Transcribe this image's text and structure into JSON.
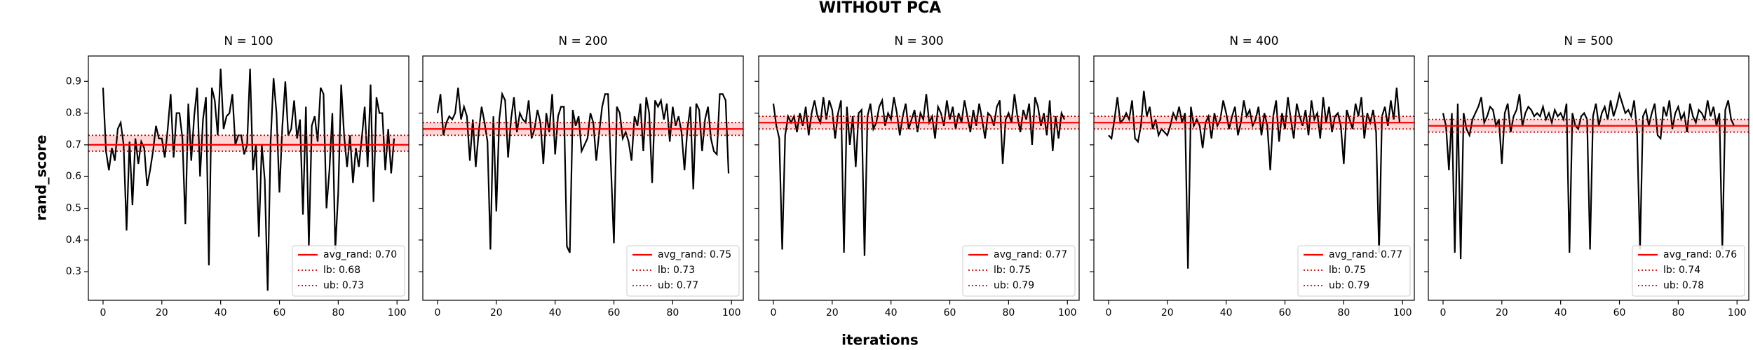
{
  "title": "WITHOUT PCA",
  "xlabel": "iterations",
  "ylabel": "rand_score",
  "chart_data": [
    {
      "type": "line",
      "title": "N = 100",
      "x": [
        0,
        1,
        2,
        3,
        4,
        5,
        6,
        7,
        8,
        9,
        10,
        11,
        12,
        13,
        14,
        15,
        16,
        17,
        18,
        19,
        20,
        21,
        22,
        23,
        24,
        25,
        26,
        27,
        28,
        29,
        30,
        31,
        32,
        33,
        34,
        35,
        36,
        37,
        38,
        39,
        40,
        41,
        42,
        43,
        44,
        45,
        46,
        47,
        48,
        49,
        50,
        51,
        52,
        53,
        54,
        55,
        56,
        57,
        58,
        59,
        60,
        61,
        62,
        63,
        64,
        65,
        66,
        67,
        68,
        69,
        70,
        71,
        72,
        73,
        74,
        75,
        76,
        77,
        78,
        79,
        80,
        81,
        82,
        83,
        84,
        85,
        86,
        87,
        88,
        89,
        90,
        91,
        92,
        93,
        94,
        95,
        96,
        97,
        98,
        99
      ],
      "series": [
        {
          "color": "#000000",
          "values": [
            0.88,
            0.68,
            0.62,
            0.69,
            0.65,
            0.75,
            0.77,
            0.7,
            0.43,
            0.71,
            0.51,
            0.72,
            0.64,
            0.71,
            0.69,
            0.57,
            0.62,
            0.68,
            0.76,
            0.72,
            0.72,
            0.66,
            0.75,
            0.86,
            0.66,
            0.8,
            0.8,
            0.72,
            0.45,
            0.83,
            0.65,
            0.79,
            0.88,
            0.6,
            0.78,
            0.85,
            0.32,
            0.88,
            0.84,
            0.73,
            0.94,
            0.75,
            0.79,
            0.8,
            0.86,
            0.7,
            0.73,
            0.73,
            0.67,
            0.7,
            0.94,
            0.62,
            0.7,
            0.41,
            0.7,
            0.59,
            0.24,
            0.71,
            0.91,
            0.8,
            0.55,
            0.76,
            0.9,
            0.73,
            0.75,
            0.84,
            0.72,
            0.78,
            0.48,
            0.82,
            0.38,
            0.76,
            0.79,
            0.71,
            0.88,
            0.86,
            0.5,
            0.62,
            0.8,
            0.37,
            0.55,
            0.89,
            0.73,
            0.63,
            0.73,
            0.58,
            0.69,
            0.63,
            0.72,
            0.82,
            0.63,
            0.89,
            0.52,
            0.85,
            0.8,
            0.8,
            0.62,
            0.75,
            0.61,
            0.72
          ]
        }
      ],
      "hlines": [
        {
          "name": "avg_rand: 0.70",
          "value": 0.7,
          "color": "#ff0000",
          "style": "solid"
        },
        {
          "name": "lb: 0.68",
          "value": 0.68,
          "color": "#cc0000",
          "style": "dotted"
        },
        {
          "name": "ub: 0.73",
          "value": 0.73,
          "color": "#cc0000",
          "style": "dotted"
        }
      ],
      "band_color": "#ffd6d6",
      "xlim": [
        -5,
        104
      ],
      "ylim": [
        0.21,
        0.98
      ],
      "xticks": [
        0,
        20,
        40,
        60,
        80,
        100
      ],
      "yticks": [
        0.3,
        0.4,
        0.5,
        0.6,
        0.7,
        0.8,
        0.9
      ],
      "legend": "lower right"
    },
    {
      "type": "line",
      "title": "N = 200",
      "x": [
        0,
        1,
        2,
        3,
        4,
        5,
        6,
        7,
        8,
        9,
        10,
        11,
        12,
        13,
        14,
        15,
        16,
        17,
        18,
        19,
        20,
        21,
        22,
        23,
        24,
        25,
        26,
        27,
        28,
        29,
        30,
        31,
        32,
        33,
        34,
        35,
        36,
        37,
        38,
        39,
        40,
        41,
        42,
        43,
        44,
        45,
        46,
        47,
        48,
        49,
        50,
        51,
        52,
        53,
        54,
        55,
        56,
        57,
        58,
        59,
        60,
        61,
        62,
        63,
        64,
        65,
        66,
        67,
        68,
        69,
        70,
        71,
        72,
        73,
        74,
        75,
        76,
        77,
        78,
        79,
        80,
        81,
        82,
        83,
        84,
        85,
        86,
        87,
        88,
        89,
        90,
        91,
        92,
        93,
        94,
        95,
        96,
        97,
        98,
        99
      ],
      "series": [
        {
          "color": "#000000",
          "values": [
            0.8,
            0.86,
            0.73,
            0.77,
            0.79,
            0.78,
            0.8,
            0.88,
            0.78,
            0.82,
            0.79,
            0.65,
            0.78,
            0.63,
            0.74,
            0.82,
            0.77,
            0.71,
            0.37,
            0.79,
            0.49,
            0.78,
            0.86,
            0.84,
            0.66,
            0.78,
            0.85,
            0.74,
            0.8,
            0.78,
            0.77,
            0.84,
            0.72,
            0.75,
            0.81,
            0.77,
            0.64,
            0.8,
            0.74,
            0.86,
            0.67,
            0.79,
            0.82,
            0.82,
            0.38,
            0.36,
            0.81,
            0.76,
            0.79,
            0.68,
            0.7,
            0.72,
            0.8,
            0.77,
            0.65,
            0.74,
            0.82,
            0.86,
            0.86,
            0.63,
            0.39,
            0.82,
            0.8,
            0.72,
            0.74,
            0.71,
            0.65,
            0.79,
            0.76,
            0.83,
            0.68,
            0.85,
            0.8,
            0.58,
            0.84,
            0.82,
            0.84,
            0.78,
            0.83,
            0.71,
            0.82,
            0.76,
            0.79,
            0.74,
            0.62,
            0.75,
            0.82,
            0.56,
            0.83,
            0.81,
            0.68,
            0.78,
            0.82,
            0.72,
            0.68,
            0.67,
            0.86,
            0.86,
            0.84,
            0.61
          ]
        }
      ],
      "hlines": [
        {
          "name": "avg_rand: 0.75",
          "value": 0.75,
          "color": "#ff0000",
          "style": "solid"
        },
        {
          "name": "lb: 0.73",
          "value": 0.73,
          "color": "#cc0000",
          "style": "dotted"
        },
        {
          "name": "ub: 0.77",
          "value": 0.77,
          "color": "#cc0000",
          "style": "dotted"
        }
      ],
      "band_color": "#ffd6d6",
      "xlim": [
        -5,
        104
      ],
      "ylim": [
        0.21,
        0.98
      ],
      "xticks": [
        0,
        20,
        40,
        60,
        80,
        100
      ],
      "yticks": [
        0.3,
        0.4,
        0.5,
        0.6,
        0.7,
        0.8,
        0.9
      ],
      "legend": "lower right"
    },
    {
      "type": "line",
      "title": "N = 300",
      "x": [
        0,
        1,
        2,
        3,
        4,
        5,
        6,
        7,
        8,
        9,
        10,
        11,
        12,
        13,
        14,
        15,
        16,
        17,
        18,
        19,
        20,
        21,
        22,
        23,
        24,
        25,
        26,
        27,
        28,
        29,
        30,
        31,
        32,
        33,
        34,
        35,
        36,
        37,
        38,
        39,
        40,
        41,
        42,
        43,
        44,
        45,
        46,
        47,
        48,
        49,
        50,
        51,
        52,
        53,
        54,
        55,
        56,
        57,
        58,
        59,
        60,
        61,
        62,
        63,
        64,
        65,
        66,
        67,
        68,
        69,
        70,
        71,
        72,
        73,
        74,
        75,
        76,
        77,
        78,
        79,
        80,
        81,
        82,
        83,
        84,
        85,
        86,
        87,
        88,
        89,
        90,
        91,
        92,
        93,
        94,
        95,
        96,
        97,
        98,
        99
      ],
      "series": [
        {
          "color": "#000000",
          "values": [
            0.83,
            0.76,
            0.72,
            0.37,
            0.73,
            0.79,
            0.77,
            0.79,
            0.74,
            0.8,
            0.76,
            0.82,
            0.73,
            0.8,
            0.84,
            0.79,
            0.77,
            0.85,
            0.78,
            0.84,
            0.81,
            0.72,
            0.8,
            0.84,
            0.36,
            0.82,
            0.7,
            0.79,
            0.63,
            0.8,
            0.81,
            0.35,
            0.79,
            0.83,
            0.75,
            0.77,
            0.82,
            0.84,
            0.76,
            0.8,
            0.78,
            0.85,
            0.8,
            0.73,
            0.79,
            0.83,
            0.75,
            0.78,
            0.81,
            0.74,
            0.8,
            0.78,
            0.86,
            0.77,
            0.79,
            0.72,
            0.82,
            0.8,
            0.76,
            0.84,
            0.78,
            0.82,
            0.75,
            0.8,
            0.77,
            0.84,
            0.79,
            0.74,
            0.81,
            0.76,
            0.83,
            0.78,
            0.72,
            0.8,
            0.79,
            0.76,
            0.82,
            0.84,
            0.64,
            0.78,
            0.8,
            0.77,
            0.86,
            0.79,
            0.74,
            0.81,
            0.78,
            0.83,
            0.7,
            0.85,
            0.82,
            0.76,
            0.8,
            0.73,
            0.84,
            0.68,
            0.79,
            0.72,
            0.8,
            0.78
          ]
        }
      ],
      "hlines": [
        {
          "name": "avg_rand: 0.77",
          "value": 0.77,
          "color": "#ff0000",
          "style": "solid"
        },
        {
          "name": "lb: 0.75",
          "value": 0.75,
          "color": "#cc0000",
          "style": "dotted"
        },
        {
          "name": "ub: 0.79",
          "value": 0.79,
          "color": "#cc0000",
          "style": "dotted"
        }
      ],
      "band_color": "#ffd6d6",
      "xlim": [
        -5,
        104
      ],
      "ylim": [
        0.21,
        0.98
      ],
      "xticks": [
        0,
        20,
        40,
        60,
        80,
        100
      ],
      "yticks": [
        0.3,
        0.4,
        0.5,
        0.6,
        0.7,
        0.8,
        0.9
      ],
      "legend": "lower right"
    },
    {
      "type": "line",
      "title": "N = 400",
      "x": [
        0,
        1,
        2,
        3,
        4,
        5,
        6,
        7,
        8,
        9,
        10,
        11,
        12,
        13,
        14,
        15,
        16,
        17,
        18,
        19,
        20,
        21,
        22,
        23,
        24,
        25,
        26,
        27,
        28,
        29,
        30,
        31,
        32,
        33,
        34,
        35,
        36,
        37,
        38,
        39,
        40,
        41,
        42,
        43,
        44,
        45,
        46,
        47,
        48,
        49,
        50,
        51,
        52,
        53,
        54,
        55,
        56,
        57,
        58,
        59,
        60,
        61,
        62,
        63,
        64,
        65,
        66,
        67,
        68,
        69,
        70,
        71,
        72,
        73,
        74,
        75,
        76,
        77,
        78,
        79,
        80,
        81,
        82,
        83,
        84,
        85,
        86,
        87,
        88,
        89,
        90,
        91,
        92,
        93,
        94,
        95,
        96,
        97,
        98,
        99
      ],
      "series": [
        {
          "color": "#000000",
          "values": [
            0.73,
            0.72,
            0.78,
            0.85,
            0.77,
            0.78,
            0.8,
            0.78,
            0.84,
            0.72,
            0.71,
            0.76,
            0.87,
            0.79,
            0.82,
            0.75,
            0.78,
            0.73,
            0.75,
            0.74,
            0.73,
            0.76,
            0.8,
            0.78,
            0.82,
            0.77,
            0.8,
            0.31,
            0.82,
            0.76,
            0.78,
            0.76,
            0.69,
            0.77,
            0.79,
            0.72,
            0.8,
            0.76,
            0.78,
            0.84,
            0.8,
            0.75,
            0.79,
            0.82,
            0.73,
            0.77,
            0.84,
            0.79,
            0.81,
            0.76,
            0.78,
            0.82,
            0.73,
            0.8,
            0.76,
            0.62,
            0.79,
            0.84,
            0.71,
            0.8,
            0.75,
            0.85,
            0.78,
            0.72,
            0.83,
            0.79,
            0.76,
            0.81,
            0.73,
            0.84,
            0.78,
            0.8,
            0.72,
            0.85,
            0.77,
            0.82,
            0.74,
            0.79,
            0.8,
            0.76,
            0.64,
            0.81,
            0.78,
            0.75,
            0.83,
            0.79,
            0.85,
            0.72,
            0.8,
            0.77,
            0.81,
            0.74,
            0.36,
            0.79,
            0.82,
            0.76,
            0.84,
            0.78,
            0.88,
            0.77
          ]
        }
      ],
      "hlines": [
        {
          "name": "avg_rand: 0.77",
          "value": 0.77,
          "color": "#ff0000",
          "style": "solid"
        },
        {
          "name": "lb: 0.75",
          "value": 0.75,
          "color": "#cc0000",
          "style": "dotted"
        },
        {
          "name": "ub: 0.79",
          "value": 0.79,
          "color": "#cc0000",
          "style": "dotted"
        }
      ],
      "band_color": "#ffd6d6",
      "xlim": [
        -5,
        104
      ],
      "ylim": [
        0.21,
        0.98
      ],
      "xticks": [
        0,
        20,
        40,
        60,
        80,
        100
      ],
      "yticks": [
        0.3,
        0.4,
        0.5,
        0.6,
        0.7,
        0.8,
        0.9
      ],
      "legend": "lower right"
    },
    {
      "type": "line",
      "title": "N = 500",
      "x": [
        0,
        1,
        2,
        3,
        4,
        5,
        6,
        7,
        8,
        9,
        10,
        11,
        12,
        13,
        14,
        15,
        16,
        17,
        18,
        19,
        20,
        21,
        22,
        23,
        24,
        25,
        26,
        27,
        28,
        29,
        30,
        31,
        32,
        33,
        34,
        35,
        36,
        37,
        38,
        39,
        40,
        41,
        42,
        43,
        44,
        45,
        46,
        47,
        48,
        49,
        50,
        51,
        52,
        53,
        54,
        55,
        56,
        57,
        58,
        59,
        60,
        61,
        62,
        63,
        64,
        65,
        66,
        67,
        68,
        69,
        70,
        71,
        72,
        73,
        74,
        75,
        76,
        77,
        78,
        79,
        80,
        81,
        82,
        83,
        84,
        85,
        86,
        87,
        88,
        89,
        90,
        91,
        92,
        93,
        94,
        95,
        96,
        97,
        98,
        99
      ],
      "series": [
        {
          "color": "#000000",
          "values": [
            0.8,
            0.76,
            0.62,
            0.8,
            0.36,
            0.83,
            0.34,
            0.8,
            0.75,
            0.73,
            0.78,
            0.8,
            0.82,
            0.85,
            0.77,
            0.79,
            0.82,
            0.81,
            0.76,
            0.78,
            0.64,
            0.8,
            0.83,
            0.74,
            0.79,
            0.81,
            0.86,
            0.76,
            0.8,
            0.82,
            0.81,
            0.79,
            0.8,
            0.79,
            0.82,
            0.78,
            0.8,
            0.77,
            0.81,
            0.79,
            0.8,
            0.78,
            0.83,
            0.36,
            0.8,
            0.76,
            0.75,
            0.79,
            0.8,
            0.78,
            0.37,
            0.79,
            0.83,
            0.76,
            0.8,
            0.82,
            0.78,
            0.84,
            0.79,
            0.82,
            0.86,
            0.83,
            0.8,
            0.81,
            0.79,
            0.84,
            0.74,
            0.37,
            0.79,
            0.81,
            0.76,
            0.8,
            0.83,
            0.73,
            0.72,
            0.82,
            0.79,
            0.84,
            0.75,
            0.8,
            0.82,
            0.78,
            0.8,
            0.74,
            0.83,
            0.79,
            0.77,
            0.81,
            0.8,
            0.78,
            0.84,
            0.79,
            0.82,
            0.76,
            0.8,
            0.37,
            0.81,
            0.84,
            0.78,
            0.76
          ]
        }
      ],
      "hlines": [
        {
          "name": "avg_rand: 0.76",
          "value": 0.76,
          "color": "#ff0000",
          "style": "solid"
        },
        {
          "name": "lb: 0.74",
          "value": 0.74,
          "color": "#cc0000",
          "style": "dotted"
        },
        {
          "name": "ub: 0.78",
          "value": 0.78,
          "color": "#cc0000",
          "style": "dotted"
        }
      ],
      "band_color": "#ffd6d6",
      "xlim": [
        -5,
        104
      ],
      "ylim": [
        0.21,
        0.98
      ],
      "xticks": [
        0,
        20,
        40,
        60,
        80,
        100
      ],
      "yticks": [
        0.3,
        0.4,
        0.5,
        0.6,
        0.7,
        0.8,
        0.9
      ],
      "legend": "lower right"
    }
  ]
}
